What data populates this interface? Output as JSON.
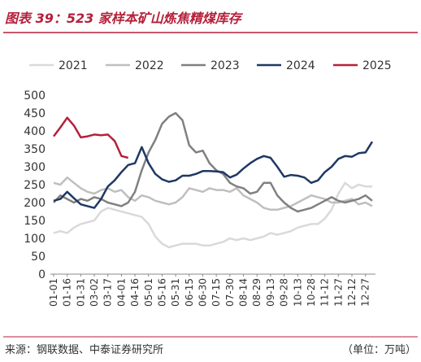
{
  "chart_data": {
    "type": "line",
    "title": "图表 39：523 家样本矿山炼焦精煤库存",
    "source": "来源：钢联数据、中泰证券研究所",
    "unit": "（单位：万吨）",
    "categories": [
      "01-01",
      null,
      "01-16",
      null,
      "01-31",
      null,
      "03-02",
      null,
      "03-17",
      null,
      "04-01",
      null,
      "04-16",
      null,
      "05-01",
      null,
      "05-16",
      null,
      "05-31",
      null,
      "06-15",
      null,
      "06-30",
      null,
      "07-15",
      null,
      "07-30",
      null,
      "08-14",
      null,
      "08-29",
      null,
      "09-13",
      null,
      "09-28",
      null,
      "10-13",
      null,
      "10-28",
      null,
      "11-12",
      null,
      "11-27",
      null,
      "12-12",
      null,
      "12-27",
      null
    ],
    "series": [
      {
        "name": "2021",
        "color": "#d9d9d9",
        "values": [
          115,
          120,
          115,
          130,
          140,
          145,
          150,
          175,
          185,
          180,
          175,
          170,
          165,
          160,
          140,
          105,
          85,
          75,
          80,
          85,
          85,
          85,
          80,
          80,
          85,
          90,
          100,
          95,
          100,
          95,
          100,
          105,
          115,
          110,
          115,
          120,
          130,
          135,
          140,
          140,
          155,
          180,
          225,
          255,
          240,
          250,
          245,
          245
        ]
      },
      {
        "name": "2022",
        "color": "#bfbfbf",
        "values": [
          255,
          250,
          270,
          255,
          240,
          230,
          225,
          235,
          240,
          230,
          235,
          215,
          205,
          220,
          215,
          205,
          200,
          195,
          200,
          215,
          240,
          235,
          230,
          240,
          235,
          235,
          230,
          240,
          220,
          210,
          200,
          185,
          180,
          180,
          185,
          190,
          200,
          210,
          220,
          215,
          210,
          200,
          200,
          205,
          210,
          195,
          200,
          190
        ]
      },
      {
        "name": "2023",
        "color": "#808080",
        "values": [
          200,
          220,
          210,
          200,
          210,
          205,
          215,
          210,
          200,
          195,
          190,
          200,
          230,
          290,
          340,
          375,
          420,
          440,
          450,
          430,
          360,
          340,
          345,
          310,
          290,
          280,
          255,
          245,
          240,
          225,
          230,
          255,
          255,
          220,
          200,
          185,
          175,
          180,
          185,
          195,
          205,
          215,
          205,
          200,
          205,
          210,
          220,
          205
        ]
      },
      {
        "name": "2024",
        "color": "#1f3864",
        "values": [
          205,
          210,
          230,
          212,
          195,
          190,
          185,
          210,
          245,
          262,
          285,
          305,
          310,
          355,
          310,
          280,
          265,
          258,
          262,
          275,
          275,
          280,
          288,
          288,
          287,
          285,
          270,
          278,
          295,
          310,
          322,
          330,
          325,
          300,
          272,
          277,
          275,
          270,
          255,
          262,
          285,
          300,
          322,
          330,
          328,
          338,
          340,
          370
        ]
      },
      {
        "name": "2025",
        "color": "#b5203a",
        "values": [
          385,
          410,
          437,
          415,
          382,
          385,
          390,
          388,
          390,
          372,
          330,
          325,
          null,
          null,
          null,
          null,
          null,
          null,
          null,
          null,
          null,
          null,
          null,
          null,
          null,
          null,
          null,
          null,
          null,
          null,
          null,
          null,
          null,
          null,
          null,
          null,
          null,
          null,
          null,
          null,
          null,
          null,
          null,
          null,
          null,
          null,
          null,
          null
        ]
      }
    ],
    "ylim": [
      0,
      500
    ],
    "yticks": [
      0,
      50,
      100,
      150,
      200,
      250,
      300,
      350,
      400,
      450,
      500
    ]
  }
}
